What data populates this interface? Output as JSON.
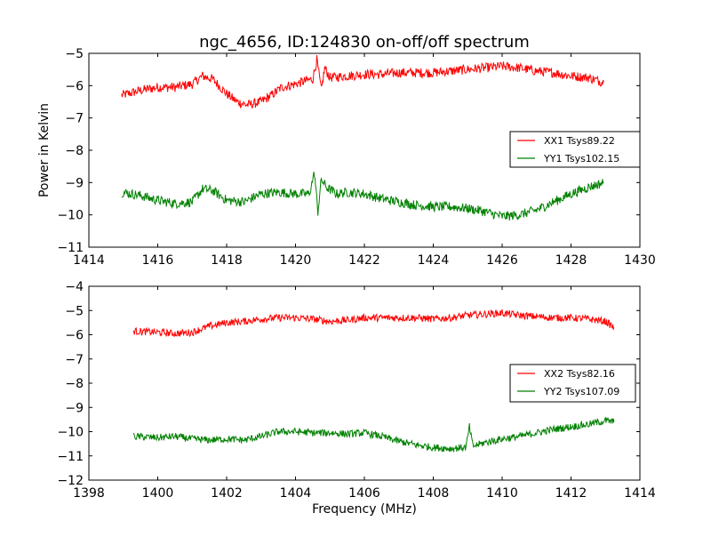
{
  "figure": {
    "title": "ngc_4656, ID:124830 on-off/off spectrum",
    "xlabel": "Frequency (MHz)",
    "ylabel": "Power in Kelvin"
  },
  "chart_data": [
    {
      "type": "line",
      "title": "ngc_4656, ID:124830 on-off/off spectrum",
      "xlabel": "",
      "ylabel": "Power in Kelvin",
      "xlim": [
        1414,
        1430
      ],
      "ylim": [
        -11,
        -5
      ],
      "xticks": [
        "1414",
        "1416",
        "1418",
        "1420",
        "1422",
        "1424",
        "1426",
        "1428",
        "1430"
      ],
      "yticks": [
        "−11",
        "−10",
        "−9",
        "−8",
        "−7",
        "−6",
        "−5"
      ],
      "legend_position": "right",
      "grid": false,
      "series": [
        {
          "name": "XX1 Tsys89.22",
          "color": "#ff0000",
          "x": [
            1414.95,
            1415.5,
            1416.0,
            1416.5,
            1417.0,
            1417.3,
            1417.6,
            1418.0,
            1418.3,
            1418.6,
            1419.0,
            1419.3,
            1419.6,
            1420.0,
            1420.3,
            1420.5,
            1420.62,
            1420.75,
            1420.85,
            1421.0,
            1421.5,
            1422.0,
            1422.5,
            1423.0,
            1423.5,
            1424.0,
            1424.5,
            1425.0,
            1425.5,
            1426.0,
            1426.5,
            1427.0,
            1427.5,
            1428.0,
            1428.5,
            1428.95
          ],
          "y": [
            -6.3,
            -6.15,
            -6.05,
            -6.05,
            -5.95,
            -5.7,
            -5.8,
            -6.25,
            -6.5,
            -6.6,
            -6.5,
            -6.3,
            -6.05,
            -5.95,
            -5.85,
            -5.8,
            -5.2,
            -6.15,
            -5.45,
            -5.75,
            -5.7,
            -5.65,
            -5.65,
            -5.6,
            -5.6,
            -5.6,
            -5.55,
            -5.5,
            -5.45,
            -5.4,
            -5.45,
            -5.55,
            -5.6,
            -5.7,
            -5.75,
            -5.9
          ]
        },
        {
          "name": "YY1 Tsys102.15",
          "color": "#008000",
          "x": [
            1414.95,
            1415.5,
            1416.0,
            1416.5,
            1417.0,
            1417.3,
            1417.6,
            1418.0,
            1418.5,
            1419.0,
            1419.5,
            1420.0,
            1420.4,
            1420.55,
            1420.65,
            1420.75,
            1420.9,
            1421.2,
            1421.5,
            1422.0,
            1422.5,
            1423.0,
            1423.5,
            1424.0,
            1424.5,
            1425.0,
            1425.5,
            1426.0,
            1426.5,
            1427.0,
            1427.5,
            1428.0,
            1428.5,
            1428.95
          ],
          "y": [
            -9.3,
            -9.4,
            -9.55,
            -9.65,
            -9.6,
            -9.2,
            -9.25,
            -9.55,
            -9.6,
            -9.35,
            -9.3,
            -9.35,
            -9.35,
            -8.7,
            -9.9,
            -8.9,
            -9.15,
            -9.35,
            -9.3,
            -9.35,
            -9.5,
            -9.6,
            -9.7,
            -9.75,
            -9.75,
            -9.8,
            -9.9,
            -10.05,
            -10.0,
            -9.85,
            -9.6,
            -9.35,
            -9.15,
            -9.0
          ]
        }
      ]
    },
    {
      "type": "line",
      "title": "",
      "xlabel": "Frequency (MHz)",
      "ylabel": "",
      "xlim": [
        1398,
        1414
      ],
      "ylim": [
        -12,
        -4
      ],
      "xticks": [
        "1398",
        "1400",
        "1402",
        "1404",
        "1406",
        "1408",
        "1410",
        "1412",
        "1414"
      ],
      "yticks": [
        "−12",
        "−11",
        "−10",
        "−9",
        "−8",
        "−7",
        "−6",
        "−5",
        "−4"
      ],
      "legend_position": "right",
      "grid": false,
      "series": [
        {
          "name": "XX2 Tsys82.16",
          "color": "#ff0000",
          "x": [
            1399.3,
            1400.0,
            1400.5,
            1401.0,
            1401.5,
            1402.0,
            1402.5,
            1403.0,
            1403.5,
            1404.0,
            1404.5,
            1405.0,
            1405.5,
            1406.0,
            1406.5,
            1407.0,
            1407.5,
            1408.0,
            1408.5,
            1409.0,
            1409.5,
            1410.0,
            1410.5,
            1411.0,
            1411.5,
            1412.0,
            1412.5,
            1413.0,
            1413.25
          ],
          "y": [
            -5.85,
            -5.9,
            -5.95,
            -5.9,
            -5.65,
            -5.5,
            -5.45,
            -5.35,
            -5.3,
            -5.3,
            -5.35,
            -5.45,
            -5.4,
            -5.3,
            -5.3,
            -5.3,
            -5.3,
            -5.35,
            -5.3,
            -5.2,
            -5.15,
            -5.1,
            -5.2,
            -5.25,
            -5.3,
            -5.3,
            -5.35,
            -5.45,
            -5.7
          ]
        },
        {
          "name": "YY2 Tsys107.09",
          "color": "#008000",
          "x": [
            1399.3,
            1400.0,
            1400.5,
            1401.0,
            1401.5,
            1402.0,
            1402.5,
            1403.0,
            1403.5,
            1404.0,
            1404.5,
            1405.0,
            1405.5,
            1406.0,
            1406.5,
            1407.0,
            1407.5,
            1408.0,
            1408.5,
            1408.95,
            1409.05,
            1409.15,
            1409.5,
            1410.0,
            1410.5,
            1411.0,
            1411.5,
            1412.0,
            1412.5,
            1413.0,
            1413.25
          ],
          "y": [
            -10.2,
            -10.25,
            -10.2,
            -10.3,
            -10.35,
            -10.3,
            -10.35,
            -10.2,
            -10.0,
            -10.0,
            -10.05,
            -10.05,
            -10.1,
            -10.05,
            -10.2,
            -10.4,
            -10.55,
            -10.65,
            -10.7,
            -10.65,
            -9.8,
            -10.6,
            -10.45,
            -10.3,
            -10.2,
            -10.05,
            -9.9,
            -9.8,
            -9.7,
            -9.55,
            -9.6
          ]
        }
      ]
    }
  ]
}
